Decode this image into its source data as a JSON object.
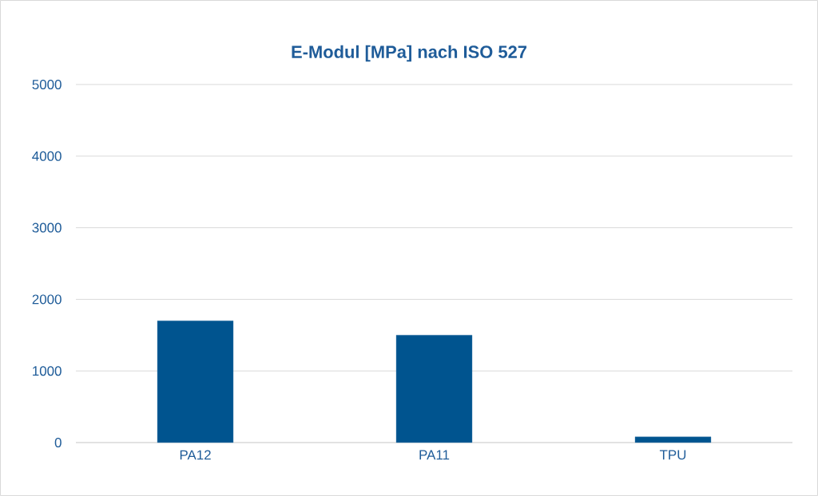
{
  "chart_data": {
    "type": "bar",
    "title": "E-Modul [MPa] nach ISO 527",
    "categories": [
      "PA12",
      "PA11",
      "TPU"
    ],
    "values": [
      1700,
      1500,
      80
    ],
    "color": "#00548f",
    "ylim": [
      0,
      5000
    ],
    "yticks": [
      0,
      1000,
      2000,
      3000,
      4000,
      5000
    ],
    "grid": "y"
  }
}
